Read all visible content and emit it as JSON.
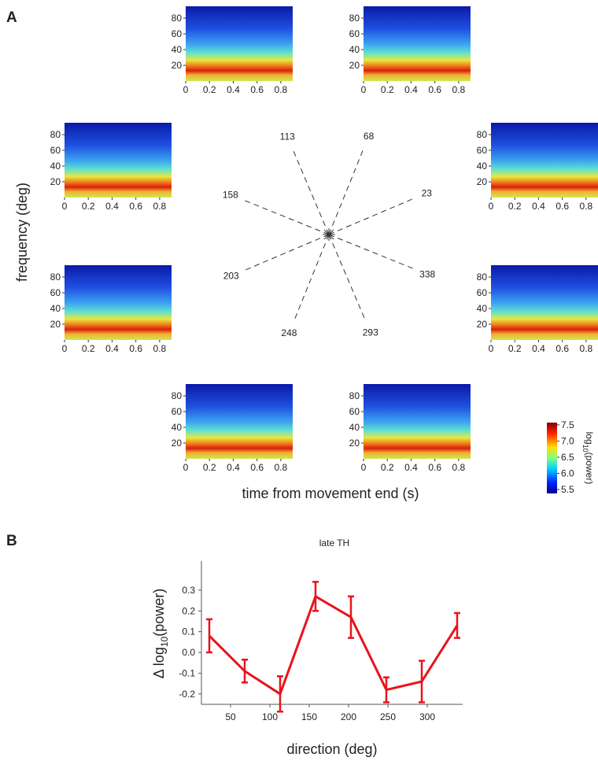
{
  "panel_labels": [
    "A",
    "B"
  ],
  "chart_data": [
    {
      "type": "spectrogram-grid",
      "ylabel": "frequency (deg)",
      "xlabel": "time from movement end (s)",
      "directions": [
        23,
        68,
        113,
        158,
        203,
        248,
        293,
        338
      ],
      "xlim": [
        0,
        0.9
      ],
      "ylim": [
        0,
        95
      ],
      "xticks": [
        0,
        0.2,
        0.4,
        0.6,
        0.8
      ],
      "yticks": [
        20,
        40,
        60,
        80
      ],
      "colorbar": {
        "label": [
          "log",
          "10",
          "(power)"
        ],
        "lim": [
          5.38,
          7.57
        ],
        "ticks": [
          5.5,
          {
            "value": 6,
            "label": "6.0"
          },
          6.5,
          {
            "value": 7,
            "label": "7.0"
          },
          7.5
        ]
      }
    },
    {
      "type": "line",
      "title": "late TH",
      "xlabel": "direction (deg)",
      "ylabel": [
        "Δ log",
        "10",
        "(power)"
      ],
      "x": [
        23,
        68,
        113,
        158,
        203,
        248,
        293,
        338
      ],
      "series": [
        {
          "color": "#e8141c",
          "values": [
            0.08,
            -0.09,
            -0.2,
            0.27,
            0.17,
            -0.18,
            -0.14,
            0.13
          ],
          "errors": [
            0.08,
            0.055,
            0.085,
            0.07,
            0.1,
            0.06,
            0.1,
            0.06
          ]
        }
      ],
      "xlim": [
        13,
        345
      ],
      "ylim": [
        -0.25,
        0.44
      ],
      "xticks": [
        50,
        100,
        150,
        200,
        250,
        300
      ],
      "yticks": [
        -0.2,
        -0.1,
        {
          "value": 0,
          "label": "0.0"
        },
        0.1,
        0.2,
        0.3
      ]
    }
  ]
}
